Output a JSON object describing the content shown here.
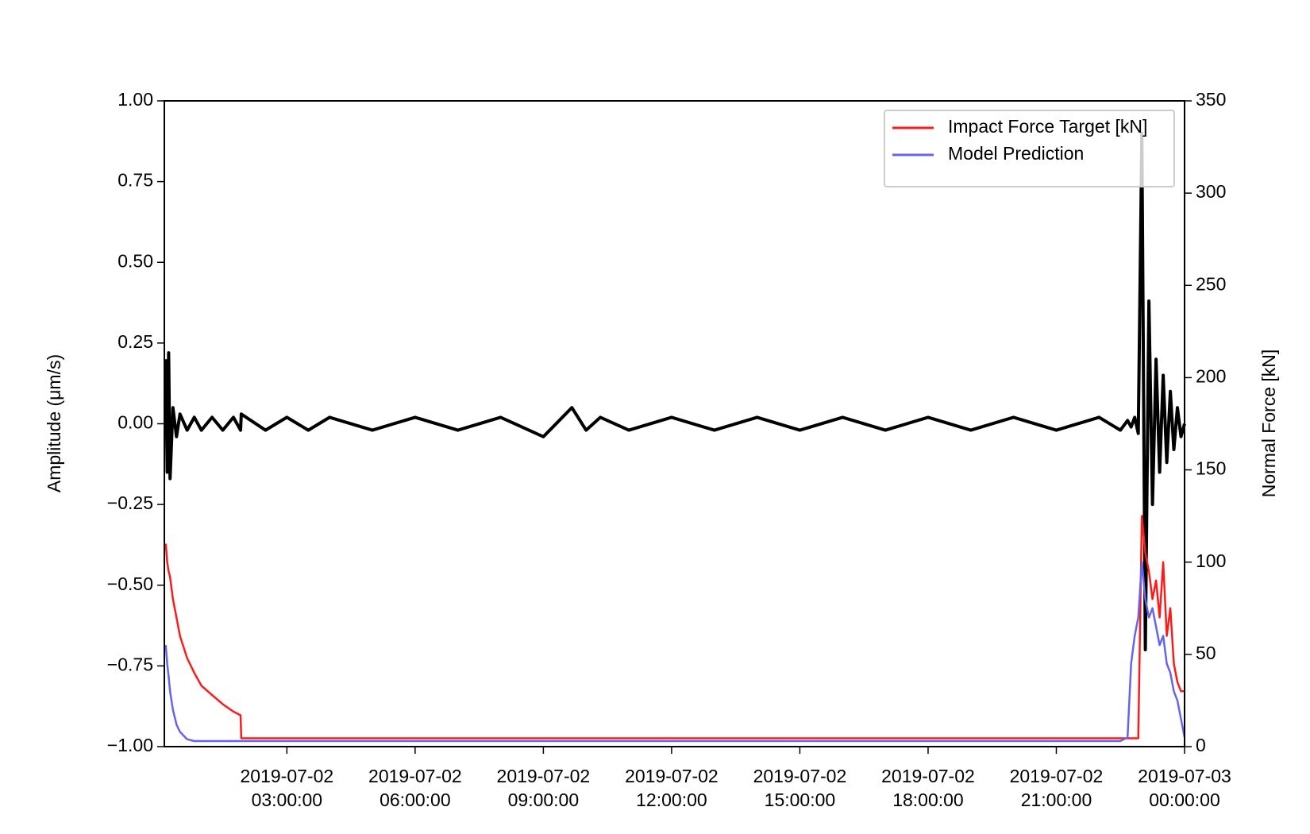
{
  "chart_data": {
    "type": "line",
    "ylabel": "Amplitude (μm/s)",
    "y2label": "Normal Force [kN]",
    "legend": "upper right",
    "x": [
      "2019-07-02 00:10:00",
      "2019-07-02 00:12:00",
      "2019-07-02 00:14:00",
      "2019-07-02 00:16:00",
      "2019-07-02 00:20:00",
      "2019-07-02 00:25:00",
      "2019-07-02 00:30:00",
      "2019-07-02 00:40:00",
      "2019-07-02 00:50:00",
      "2019-07-02 01:00:00",
      "2019-07-02 01:15:00",
      "2019-07-02 01:30:00",
      "2019-07-02 01:45:00",
      "2019-07-02 01:55:00",
      "2019-07-02 01:56:00",
      "2019-07-02 02:30:00",
      "2019-07-02 03:00:00",
      "2019-07-02 03:30:00",
      "2019-07-02 04:00:00",
      "2019-07-02 05:00:00",
      "2019-07-02 06:00:00",
      "2019-07-02 07:00:00",
      "2019-07-02 08:00:00",
      "2019-07-02 09:00:00",
      "2019-07-02 09:40:00",
      "2019-07-02 10:00:00",
      "2019-07-02 10:20:00",
      "2019-07-02 11:00:00",
      "2019-07-02 12:00:00",
      "2019-07-02 13:00:00",
      "2019-07-02 14:00:00",
      "2019-07-02 15:00:00",
      "2019-07-02 16:00:00",
      "2019-07-02 17:00:00",
      "2019-07-02 18:00:00",
      "2019-07-02 19:00:00",
      "2019-07-02 20:00:00",
      "2019-07-02 21:00:00",
      "2019-07-02 22:00:00",
      "2019-07-02 22:30:00",
      "2019-07-02 22:40:00",
      "2019-07-02 22:45:00",
      "2019-07-02 22:50:00",
      "2019-07-02 22:55:00",
      "2019-07-02 23:00:00",
      "2019-07-02 23:05:00",
      "2019-07-02 23:10:00",
      "2019-07-02 23:15:00",
      "2019-07-02 23:20:00",
      "2019-07-02 23:25:00",
      "2019-07-02 23:30:00",
      "2019-07-02 23:35:00",
      "2019-07-02 23:40:00",
      "2019-07-02 23:45:00",
      "2019-07-02 23:50:00",
      "2019-07-02 23:55:00",
      "2019-07-03 00:00:00"
    ],
    "series": [
      {
        "color": "#000000",
        "values": [
          0.2,
          -0.15,
          0.22,
          -0.17,
          0.05,
          -0.04,
          0.03,
          -0.02,
          0.02,
          -0.02,
          0.02,
          -0.02,
          0.02,
          -0.02,
          0.03,
          -0.02,
          0.02,
          -0.02,
          0.02,
          -0.02,
          0.02,
          -0.02,
          0.02,
          -0.04,
          0.05,
          -0.02,
          0.02,
          -0.02,
          0.02,
          -0.02,
          0.02,
          -0.02,
          0.02,
          -0.02,
          0.02,
          -0.02,
          0.02,
          -0.02,
          0.02,
          -0.02,
          0.01,
          -0.01,
          0.02,
          -0.03,
          0.9,
          -0.7,
          0.38,
          -0.25,
          0.2,
          -0.15,
          0.15,
          -0.12,
          0.1,
          -0.08,
          0.05,
          -0.04,
          0.0
        ]
      },
      {
        "name": "Impact Force Target [kN]",
        "color": "#ff1a1a",
        "axis": "y2",
        "values": [
          110,
          100,
          95,
          92,
          80,
          70,
          60,
          48,
          40,
          33,
          28,
          23,
          19,
          17,
          4.5,
          4.5,
          4.5,
          4.5,
          4.5,
          4.5,
          4.5,
          4.5,
          4.5,
          4.5,
          4.5,
          4.5,
          4.5,
          4.5,
          4.5,
          4.5,
          4.5,
          4.5,
          4.5,
          4.5,
          4.5,
          4.5,
          4.5,
          4.5,
          4.5,
          4.5,
          4.5,
          4.5,
          4.5,
          4.5,
          125,
          105,
          95,
          80,
          90,
          70,
          100,
          60,
          75,
          45,
          35,
          30,
          30
        ]
      },
      {
        "name": "Model Prediction",
        "color": "#6464ee",
        "axis": "y2",
        "values": [
          55,
          45,
          38,
          30,
          20,
          12,
          8,
          4,
          3,
          3,
          3,
          3,
          3,
          3,
          3,
          3,
          3,
          3,
          3,
          3,
          3,
          3,
          3,
          3,
          3,
          3,
          3,
          3,
          3,
          3,
          3,
          3,
          3,
          3,
          3,
          3,
          3,
          3,
          3,
          3,
          5,
          45,
          60,
          70,
          100,
          80,
          70,
          75,
          65,
          55,
          60,
          45,
          40,
          30,
          25,
          15,
          5
        ]
      }
    ],
    "xlim": [
      "2019-07-02 00:08:00",
      "2019-07-03 00:00:00"
    ],
    "xticks": [
      "2019-07-02 03:00:00",
      "2019-07-02 06:00:00",
      "2019-07-02 09:00:00",
      "2019-07-02 12:00:00",
      "2019-07-02 15:00:00",
      "2019-07-02 18:00:00",
      "2019-07-02 21:00:00",
      "2019-07-03 00:00:00"
    ],
    "ylim": [
      -1,
      1
    ],
    "yticks": [
      {
        "value": -1,
        "label": "−1.00"
      },
      {
        "value": -0.75,
        "label": "−0.75"
      },
      {
        "value": -0.5,
        "label": "−0.50"
      },
      {
        "value": -0.25,
        "label": "−0.25"
      },
      {
        "value": 0,
        "label": "0.00"
      },
      {
        "value": 0.25,
        "label": "0.25"
      },
      {
        "value": 0.5,
        "label": "0.50"
      },
      {
        "value": 0.75,
        "label": "0.75"
      },
      {
        "value": 1,
        "label": "1.00"
      }
    ],
    "y2lim": [
      0,
      350
    ],
    "y2ticks": [
      0,
      50,
      100,
      150,
      200,
      250,
      300,
      350
    ]
  }
}
